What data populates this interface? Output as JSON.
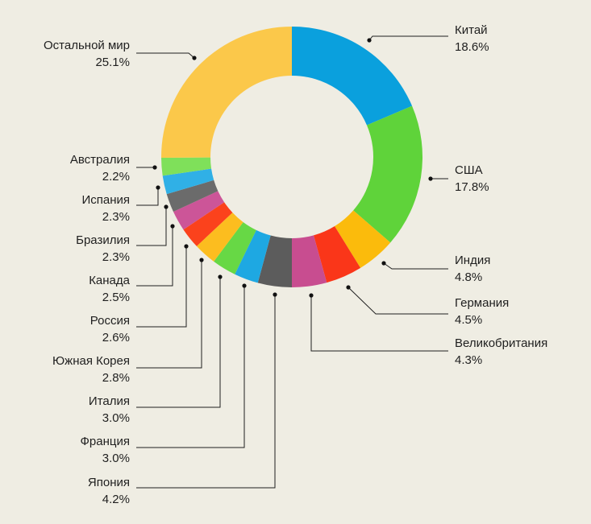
{
  "chart_data": {
    "type": "pie",
    "variant": "donut",
    "legend": "none",
    "labels": "callout lines with name and percentage",
    "slices": [
      {
        "name": "Китай",
        "value": 18.6,
        "label": "18.6%",
        "color": "#0aa0dd"
      },
      {
        "name": "США",
        "value": 17.8,
        "label": "17.8%",
        "color": "#5fd33a"
      },
      {
        "name": "Индия",
        "value": 4.8,
        "label": "4.8%",
        "color": "#fbbb0c"
      },
      {
        "name": "Германия",
        "value": 4.5,
        "label": "4.5%",
        "color": "#fa3619"
      },
      {
        "name": "Великобритания",
        "value": 4.3,
        "label": "4.3%",
        "color": "#c84d90"
      },
      {
        "name": "Япония",
        "value": 4.2,
        "label": "4.2%",
        "color": "#5c5c5c"
      },
      {
        "name": "Франция",
        "value": 3.0,
        "label": "3.0%",
        "color": "#1ea8e2"
      },
      {
        "name": "Италия",
        "value": 3.0,
        "label": "3.0%",
        "color": "#67d845"
      },
      {
        "name": "Южная Корея",
        "value": 2.8,
        "label": "2.8%",
        "color": "#fcbd1f"
      },
      {
        "name": "Россия",
        "value": 2.6,
        "label": "2.6%",
        "color": "#fb421c"
      },
      {
        "name": "Канада",
        "value": 2.5,
        "label": "2.5%",
        "color": "#cc5598"
      },
      {
        "name": "Бразилия",
        "value": 2.3,
        "label": "2.3%",
        "color": "#6b6b6b"
      },
      {
        "name": "Испания",
        "value": 2.3,
        "label": "2.3%",
        "color": "#30b0e6"
      },
      {
        "name": "Австралия",
        "value": 2.2,
        "label": "2.2%",
        "color": "#7fe05a"
      },
      {
        "name": "Остальной мир",
        "value": 25.1,
        "label": "25.1%",
        "color": "#fbc84a"
      }
    ]
  }
}
